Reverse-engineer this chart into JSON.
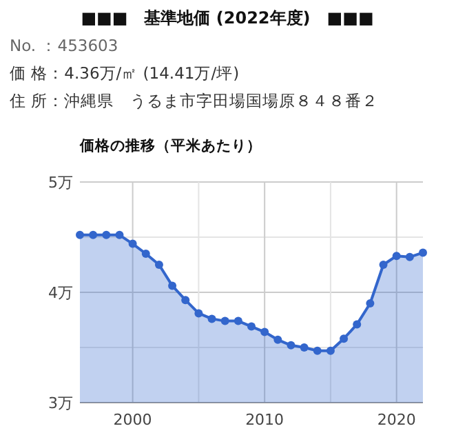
{
  "chart_data": {
    "type": "area",
    "title": "■■■　基準地価 (2022年度)　■■■",
    "subtitle": "価格の推移（平米あたり）",
    "annotations": [
      "No. ：453603",
      "価 格：4.36万/㎡ (14.41万/坪)",
      "住 所：沖縄県　うるま市字田場国場原８４８番２"
    ],
    "x": [
      1996,
      1997,
      1998,
      1999,
      2000,
      2001,
      2002,
      2003,
      2004,
      2005,
      2006,
      2007,
      2008,
      2009,
      2010,
      2011,
      2012,
      2013,
      2014,
      2015,
      2016,
      2017,
      2018,
      2019,
      2020,
      2021,
      2022
    ],
    "series": [
      {
        "color": "#3366cc",
        "values": [
          4.52,
          4.52,
          4.52,
          4.52,
          4.44,
          4.35,
          4.25,
          4.06,
          3.93,
          3.81,
          3.76,
          3.74,
          3.74,
          3.69,
          3.64,
          3.57,
          3.52,
          3.5,
          3.47,
          3.47,
          3.58,
          3.71,
          3.9,
          4.25,
          4.33,
          4.32,
          4.36
        ]
      }
    ],
    "xlim": [
      1996,
      2022
    ],
    "xticks": [
      2000,
      {
        "value": 2005,
        "label": null
      },
      2010,
      {
        "value": 2015,
        "label": null
      },
      2020
    ],
    "ylim": [
      3,
      5
    ],
    "yticks": [
      {
        "value": 3,
        "label": "3万"
      },
      {
        "value": 3.5,
        "label": null
      },
      {
        "value": 4,
        "label": "4万"
      },
      {
        "value": 4.5,
        "label": null
      },
      {
        "value": 5,
        "label": "5万"
      }
    ],
    "grid": true,
    "marker": "circle"
  }
}
